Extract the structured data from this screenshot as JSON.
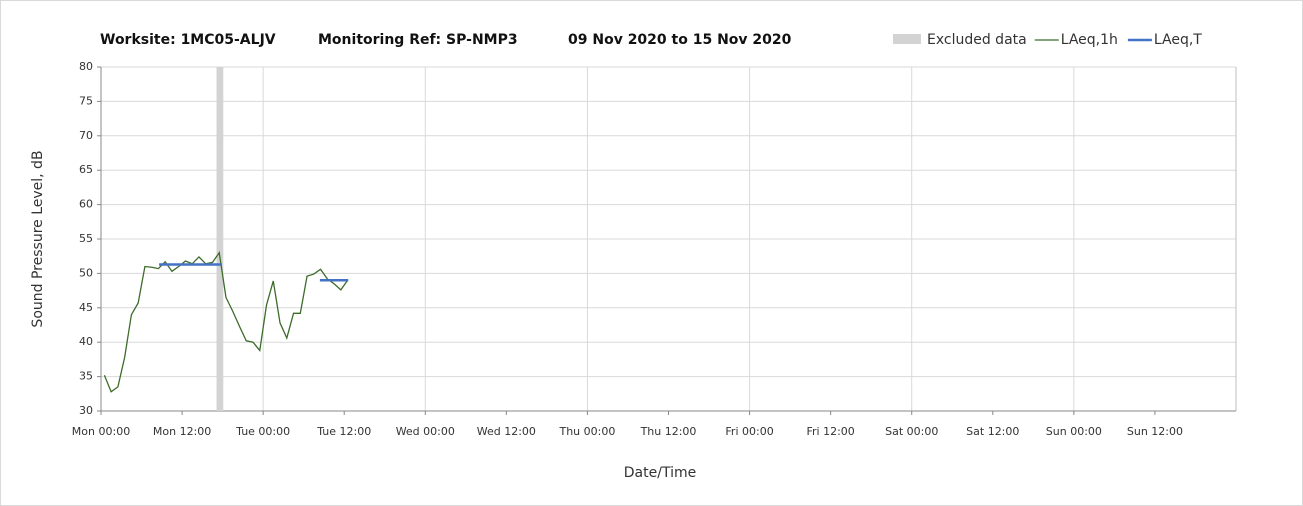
{
  "chart_data": {
    "type": "line",
    "title_parts": [
      "Worksite: 1MC05-ALJV",
      "Monitoring Ref: SP-NMP3",
      "09 Nov 2020 to 15 Nov 2020"
    ],
    "xlabel": "Date/Time",
    "ylabel": "Sound Pressure Level, dB",
    "xlim": [
      0,
      168
    ],
    "ylim": [
      30,
      80
    ],
    "yticks": [
      30,
      35,
      40,
      45,
      50,
      55,
      60,
      65,
      70,
      75,
      80
    ],
    "xticks": [
      {
        "value": 0,
        "label": "Mon 00:00"
      },
      {
        "value": 12,
        "label": "Mon 12:00"
      },
      {
        "value": 24,
        "label": "Tue 00:00"
      },
      {
        "value": 36,
        "label": "Tue 12:00"
      },
      {
        "value": 48,
        "label": "Wed 00:00"
      },
      {
        "value": 60,
        "label": "Wed 12:00"
      },
      {
        "value": 72,
        "label": "Thu 00:00"
      },
      {
        "value": 84,
        "label": "Thu 12:00"
      },
      {
        "value": 96,
        "label": "Fri 00:00"
      },
      {
        "value": 108,
        "label": "Fri 12:00"
      },
      {
        "value": 120,
        "label": "Sat 00:00"
      },
      {
        "value": 132,
        "label": "Sat 12:00"
      },
      {
        "value": 144,
        "label": "Sun 00:00"
      },
      {
        "value": 156,
        "label": "Sun 12:00"
      }
    ],
    "grid": true,
    "excluded": {
      "name": "Excluded data",
      "color": "#d3d3d3",
      "ranges": [
        [
          17.1,
          18.1
        ]
      ]
    },
    "series": [
      {
        "name": "LAeq,1h",
        "color": "#3d6b2a",
        "width": 1.3,
        "x": [
          0.5,
          1.5,
          2.5,
          3.5,
          4.5,
          5.5,
          6.5,
          7.5,
          8.5,
          9.5,
          10.5,
          11.5,
          12.5,
          13.5,
          14.5,
          15.5,
          16.5,
          17.5,
          18.5,
          19.5,
          20.5,
          21.5,
          22.5,
          23.5,
          24.5,
          25.5,
          26.5,
          27.5,
          28.5,
          29.5,
          30.5,
          31.5,
          32.5,
          33.5,
          34.5,
          35.5,
          36.5
        ],
        "values": [
          35.2,
          32.8,
          33.5,
          37.8,
          44,
          45.7,
          51,
          50.9,
          50.7,
          51.7,
          50.3,
          51,
          51.8,
          51.4,
          52.4,
          51.4,
          51.6,
          53,
          46.5,
          44.5,
          42.3,
          40.2,
          40,
          38.8,
          45.4,
          48.9,
          42.8,
          40.6,
          44.2,
          44.2,
          49.6,
          49.9,
          50.6,
          49.2,
          48.5,
          47.6,
          49
        ]
      },
      {
        "name": "LAeq,T",
        "color": "#4472c4",
        "width": 2.5,
        "x": [
          8.6,
          17.9,
          25,
          32.4,
          36.6
        ],
        "values": [
          51.3,
          51.3,
          null,
          49,
          49
        ]
      }
    ]
  }
}
